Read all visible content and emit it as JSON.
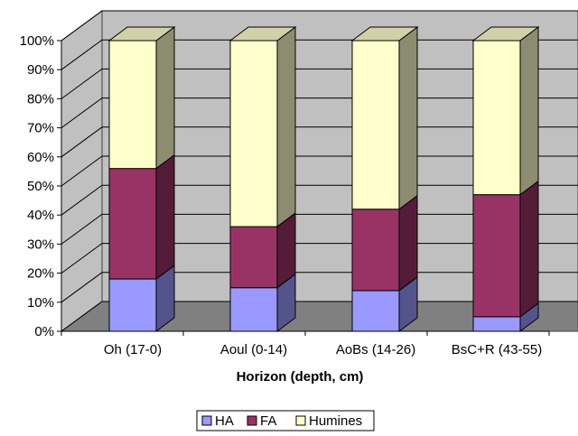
{
  "chart_data": {
    "type": "bar",
    "stacked": true,
    "percent_stacked": true,
    "three_d": true,
    "categories": [
      "Oh (17-0)",
      "Aoul (0-14)",
      "AoBs (14-26)",
      "BsC+R (43-55)"
    ],
    "series": [
      {
        "name": "HA",
        "values": [
          18,
          15,
          14,
          5
        ]
      },
      {
        "name": "FA",
        "values": [
          38,
          21,
          28,
          42
        ]
      },
      {
        "name": "Humines",
        "values": [
          44,
          64,
          58,
          53
        ]
      }
    ],
    "xlabel": "Horizon (depth, cm)",
    "ylabel": "",
    "ylim": [
      0,
      100
    ],
    "yticks": [
      "0%",
      "10%",
      "20%",
      "30%",
      "40%",
      "50%",
      "60%",
      "70%",
      "80%",
      "90%",
      "100%"
    ],
    "grid": true,
    "legend_position": "bottom"
  },
  "colors": {
    "HA": "#9999ff",
    "FA": "#993366",
    "Humines": "#ffffcc",
    "wall": "#c0c0c0",
    "floor": "#808080"
  }
}
